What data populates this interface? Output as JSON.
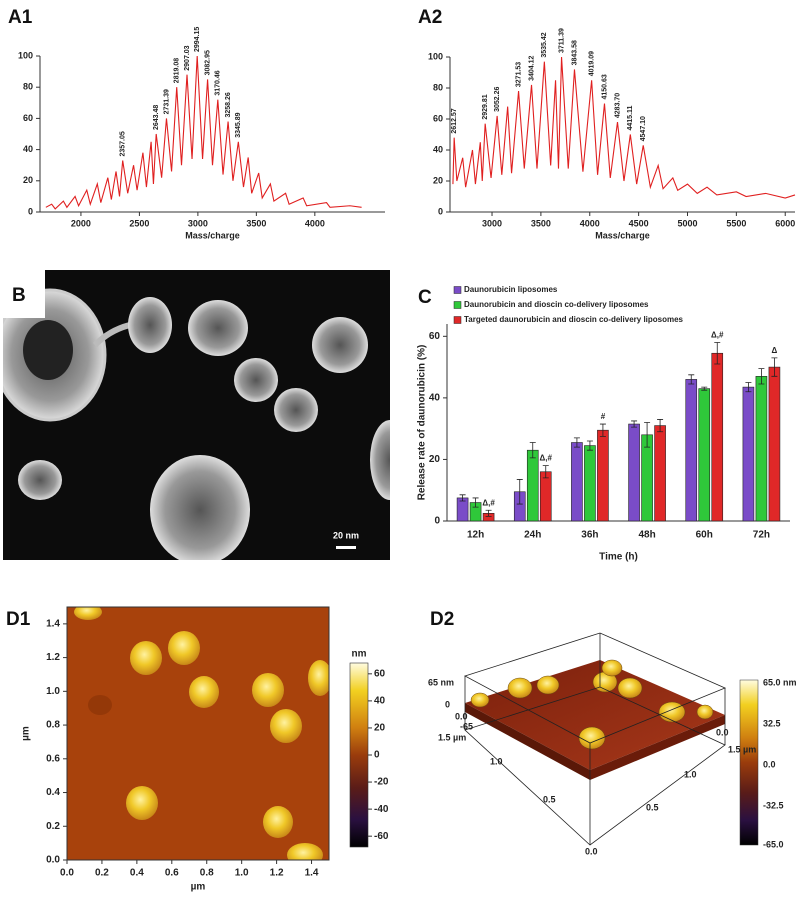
{
  "chart_data": [
    {
      "type": "line",
      "label": "A1",
      "xlabel": "Mass/charge",
      "color": "#e02020",
      "xlim": [
        1650,
        4600
      ],
      "ylim": [
        0,
        100
      ],
      "xticks": [
        2000,
        2500,
        3000,
        3500,
        4000
      ],
      "yticks": [
        0,
        20,
        40,
        60,
        80,
        100
      ],
      "x": [
        1700,
        1750,
        1780,
        1850,
        1880,
        1950,
        1980,
        2050,
        2080,
        2140,
        2170,
        2230,
        2260,
        2300,
        2330,
        2357.05,
        2400,
        2450,
        2480,
        2530,
        2560,
        2600,
        2620,
        2643.48,
        2690,
        2731.39,
        2775,
        2819.08,
        2860,
        2907.03,
        2950,
        2994.15,
        3040,
        3082.95,
        3125,
        3170.46,
        3215,
        3258.26,
        3300,
        3345.89,
        3390,
        3430,
        3460,
        3520,
        3550,
        3620,
        3650,
        3750,
        3780,
        3900,
        3930,
        4100,
        4130,
        4300,
        4400
      ],
      "values": [
        3,
        5,
        2,
        7,
        3,
        10,
        4,
        14,
        5,
        18,
        6,
        22,
        8,
        26,
        10,
        33,
        12,
        30,
        14,
        38,
        16,
        45,
        18,
        50,
        22,
        60,
        26,
        80,
        30,
        88,
        34,
        100,
        34,
        85,
        30,
        72,
        24,
        58,
        20,
        45,
        16,
        35,
        12,
        25,
        9,
        18,
        7,
        12,
        5,
        9,
        4,
        6,
        3,
        4,
        3
      ],
      "peak_labels": {
        "x": [
          2357.05,
          2643.48,
          2731.39,
          2819.08,
          2907.03,
          2994.15,
          3082.95,
          3170.46,
          3258.26,
          3345.89
        ],
        "y": [
          33,
          50,
          60,
          80,
          88,
          100,
          85,
          72,
          58,
          45
        ]
      }
    },
    {
      "type": "line",
      "label": "A2",
      "xlabel": "Mass/charge",
      "color": "#e02020",
      "xlim": [
        2570,
        6100
      ],
      "ylim": [
        0,
        100
      ],
      "xticks": [
        3000,
        3500,
        4000,
        4500,
        5000,
        5500,
        6000
      ],
      "yticks": [
        0,
        20,
        40,
        60,
        80,
        100
      ],
      "x": [
        2600,
        2612.57,
        2640,
        2700,
        2730,
        2800,
        2830,
        2880,
        2900,
        2929.81,
        2990,
        3052.26,
        3100,
        3160,
        3200,
        3271.53,
        3330,
        3404.12,
        3460,
        3535.42,
        3600,
        3650,
        3680,
        3711.39,
        3780,
        3843.58,
        3930,
        4019.09,
        4080,
        4150.63,
        4210,
        4283.7,
        4350,
        4415.11,
        4480,
        4547.1,
        4620,
        4700,
        4750,
        4850,
        4900,
        5000,
        5100,
        5200,
        5300,
        5500,
        5600,
        5800,
        6000,
        6100
      ],
      "values": [
        18,
        48,
        20,
        35,
        16,
        40,
        18,
        45,
        20,
        57,
        22,
        62,
        24,
        68,
        25,
        78,
        28,
        82,
        28,
        97,
        30,
        85,
        28,
        100,
        28,
        92,
        26,
        85,
        24,
        70,
        22,
        58,
        20,
        50,
        18,
        43,
        16,
        30,
        15,
        22,
        14,
        18,
        12,
        16,
        11,
        13,
        10,
        12,
        9,
        11
      ],
      "peak_labels": {
        "x": [
          2612.57,
          2929.81,
          3052.26,
          3271.53,
          3404.12,
          3535.42,
          3711.39,
          3843.58,
          4019.09,
          4150.63,
          {
            "value": 4283.7,
            "label": "4283.70"
          },
          4415.11,
          {
            "value": 4547.1,
            "label": "4547.10"
          }
        ],
        "y": [
          48,
          57,
          62,
          78,
          82,
          97,
          100,
          92,
          85,
          70,
          58,
          50,
          43
        ]
      }
    },
    {
      "type": "bar",
      "label": "C",
      "xlabel": "Time (h)",
      "ylabel": "Release rate of daunorubicin (%)",
      "categories": [
        "12h",
        "24h",
        "36h",
        "48h",
        "60h",
        "72h"
      ],
      "ylim": [
        0,
        64
      ],
      "yticks": [
        0,
        20,
        40,
        60
      ],
      "series": [
        {
          "name": "Daunorubicin liposomes",
          "color": "#7a4cc8",
          "values": [
            7.5,
            9.5,
            25.5,
            31.5,
            46,
            43.5
          ],
          "errors": [
            1,
            4,
            1.5,
            1,
            1.5,
            1.5
          ]
        },
        {
          "name": "Daunorubicin and dioscin co-delivery liposomes",
          "color": "#2fc83a",
          "values": [
            6,
            23,
            24.5,
            28,
            43,
            47
          ],
          "errors": [
            1.5,
            2.5,
            1.5,
            4,
            0.5,
            2.5
          ]
        },
        {
          "name": "Targeted daunorubicin and dioscin co-delivery liposomes",
          "color": "#e02828",
          "values": [
            2.5,
            16,
            29.5,
            31,
            54.5,
            50
          ],
          "errors": [
            1,
            2,
            2,
            2,
            3.5,
            3
          ],
          "annotations": [
            "Δ,#",
            "Δ,#",
            "#",
            null,
            "Δ,#",
            "Δ"
          ]
        }
      ]
    },
    {
      "type": "image",
      "label": "D1",
      "xlabel": "µm",
      "ylabel": "µm",
      "xlim": [
        0,
        1.5
      ],
      "ylim": [
        0,
        1.5
      ],
      "xticks": [
        {
          "value": 0,
          "label": "0.0"
        },
        0.2,
        0.4,
        0.6,
        0.8,
        {
          "value": 1,
          "label": "1.0"
        },
        1.2,
        1.4
      ],
      "yticks": [
        {
          "value": 0,
          "label": "0.0"
        },
        0.2,
        0.4,
        0.6,
        0.8,
        {
          "value": 1,
          "label": "1.0"
        },
        1.2,
        1.4
      ],
      "colorbar": {
        "label": "nm",
        "lim": [
          -68,
          68
        ],
        "ticks": [
          -60,
          -40,
          -20,
          0,
          20,
          40,
          60
        ]
      }
    }
  ],
  "panel_B": {
    "label": "B",
    "scale_bar": "20 nm"
  },
  "panel_D2": {
    "label": "D2",
    "z_axis": [
      "65 nm",
      "0",
      "-65"
    ],
    "left_axis": [
      "0.0",
      "1.5 µm",
      "1.0",
      "0.5",
      "0.0"
    ],
    "right_axis": [
      "0.0",
      "1.5 µm",
      "1.0",
      "0.5"
    ],
    "colorbar": [
      "65.0 nm",
      "32.5",
      "0.0",
      "-32.5",
      "-65.0"
    ]
  }
}
